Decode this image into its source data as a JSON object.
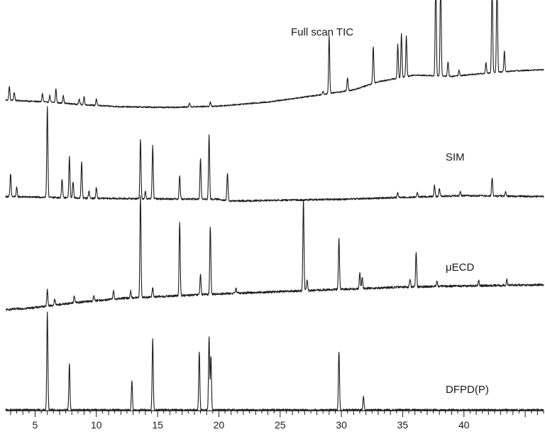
{
  "chart_data": {
    "type": "line",
    "xlim": [
      2.6,
      46.5
    ],
    "x_ticks": [
      5,
      10,
      15,
      20,
      25,
      30,
      35,
      40
    ],
    "x_tick_labels": [
      "5",
      "10",
      "15",
      "20",
      "25",
      "30",
      "35",
      "40"
    ],
    "minor_tick_step": 0.5,
    "grid": false,
    "series": [
      {
        "name": "Full scan TIC",
        "baseline": [
          [
            2.6,
            0.15
          ],
          [
            6,
            0.12
          ],
          [
            9,
            0.08
          ],
          [
            12,
            0.05
          ],
          [
            16,
            0.04
          ],
          [
            20,
            0.06
          ],
          [
            24,
            0.12
          ],
          [
            28,
            0.22
          ],
          [
            31,
            0.3
          ],
          [
            33,
            0.42
          ],
          [
            36,
            0.52
          ],
          [
            39,
            0.5
          ],
          [
            42,
            0.55
          ],
          [
            44,
            0.58
          ],
          [
            46.5,
            0.6
          ]
        ],
        "peaks": [
          [
            2.9,
            0.2
          ],
          [
            3.3,
            0.12
          ],
          [
            5.6,
            0.12
          ],
          [
            6.2,
            0.1
          ],
          [
            6.7,
            0.2
          ],
          [
            7.3,
            0.12
          ],
          [
            8.6,
            0.08
          ],
          [
            9.0,
            0.12
          ],
          [
            10.0,
            0.1
          ],
          [
            17.6,
            0.06
          ],
          [
            19.3,
            0.06
          ],
          [
            28.5,
            0.05
          ],
          [
            29.0,
            0.85
          ],
          [
            30.5,
            0.2
          ],
          [
            32.6,
            0.55
          ],
          [
            34.6,
            0.5
          ],
          [
            34.9,
            0.65
          ],
          [
            35.3,
            0.6
          ],
          [
            37.7,
            1.6
          ],
          [
            38.1,
            1.6
          ],
          [
            38.7,
            0.22
          ],
          [
            39.6,
            0.08
          ],
          [
            41.8,
            0.15
          ],
          [
            42.3,
            1.5
          ],
          [
            42.7,
            1.5
          ],
          [
            43.3,
            0.3
          ]
        ]
      },
      {
        "name": "SIM",
        "baseline": [
          [
            2.6,
            0.05
          ],
          [
            10,
            0.03
          ],
          [
            20,
            0.02
          ],
          [
            21,
            0.0
          ],
          [
            30,
            0.02
          ],
          [
            35,
            0.04
          ],
          [
            40,
            0.06
          ],
          [
            46.5,
            0.05
          ]
        ],
        "peaks": [
          [
            3.0,
            0.25
          ],
          [
            3.5,
            0.1
          ],
          [
            6.0,
            1.0
          ],
          [
            7.2,
            0.2
          ],
          [
            7.8,
            0.45
          ],
          [
            8.1,
            0.18
          ],
          [
            8.8,
            0.4
          ],
          [
            9.4,
            0.08
          ],
          [
            10.0,
            0.12
          ],
          [
            13.6,
            0.65
          ],
          [
            14.0,
            0.08
          ],
          [
            14.6,
            0.58
          ],
          [
            16.8,
            0.26
          ],
          [
            18.5,
            0.45
          ],
          [
            19.2,
            0.7
          ],
          [
            20.7,
            0.3
          ],
          [
            34.6,
            0.06
          ],
          [
            36.2,
            0.05
          ],
          [
            37.6,
            0.12
          ],
          [
            38.0,
            0.08
          ],
          [
            39.7,
            0.05
          ],
          [
            42.3,
            0.2
          ],
          [
            43.4,
            0.05
          ]
        ]
      },
      {
        "name": "μECD",
        "baseline": [
          [
            2.6,
            0.0
          ],
          [
            5,
            0.02
          ],
          [
            8,
            0.06
          ],
          [
            12,
            0.1
          ],
          [
            16,
            0.12
          ],
          [
            20,
            0.14
          ],
          [
            25,
            0.16
          ],
          [
            30,
            0.18
          ],
          [
            35,
            0.2
          ],
          [
            40,
            0.21
          ],
          [
            46.5,
            0.22
          ]
        ],
        "peaks": [
          [
            6.0,
            0.14
          ],
          [
            6.6,
            0.05
          ],
          [
            8.2,
            0.06
          ],
          [
            9.8,
            0.04
          ],
          [
            11.4,
            0.07
          ],
          [
            12.8,
            0.06
          ],
          [
            13.6,
            0.9
          ],
          [
            14.6,
            0.08
          ],
          [
            16.8,
            0.65
          ],
          [
            18.5,
            0.18
          ],
          [
            19.3,
            0.6
          ],
          [
            21.4,
            0.04
          ],
          [
            26.9,
            0.8
          ],
          [
            27.2,
            0.1
          ],
          [
            29.8,
            0.45
          ],
          [
            31.5,
            0.14
          ],
          [
            31.7,
            0.1
          ],
          [
            35.6,
            0.07
          ],
          [
            36.1,
            0.3
          ],
          [
            37.8,
            0.05
          ],
          [
            41.2,
            0.05
          ],
          [
            43.5,
            0.05
          ]
        ]
      },
      {
        "name": "DFPD(P)",
        "baseline": [
          [
            2.6,
            0.0
          ],
          [
            46.5,
            0.0
          ]
        ],
        "peaks": [
          [
            6.0,
            1.0
          ],
          [
            7.8,
            0.47
          ],
          [
            12.9,
            0.3
          ],
          [
            14.6,
            0.72
          ],
          [
            18.4,
            0.6
          ],
          [
            19.2,
            0.74
          ],
          [
            19.35,
            0.55
          ],
          [
            29.8,
            0.6
          ],
          [
            31.8,
            0.14
          ]
        ]
      }
    ]
  }
}
